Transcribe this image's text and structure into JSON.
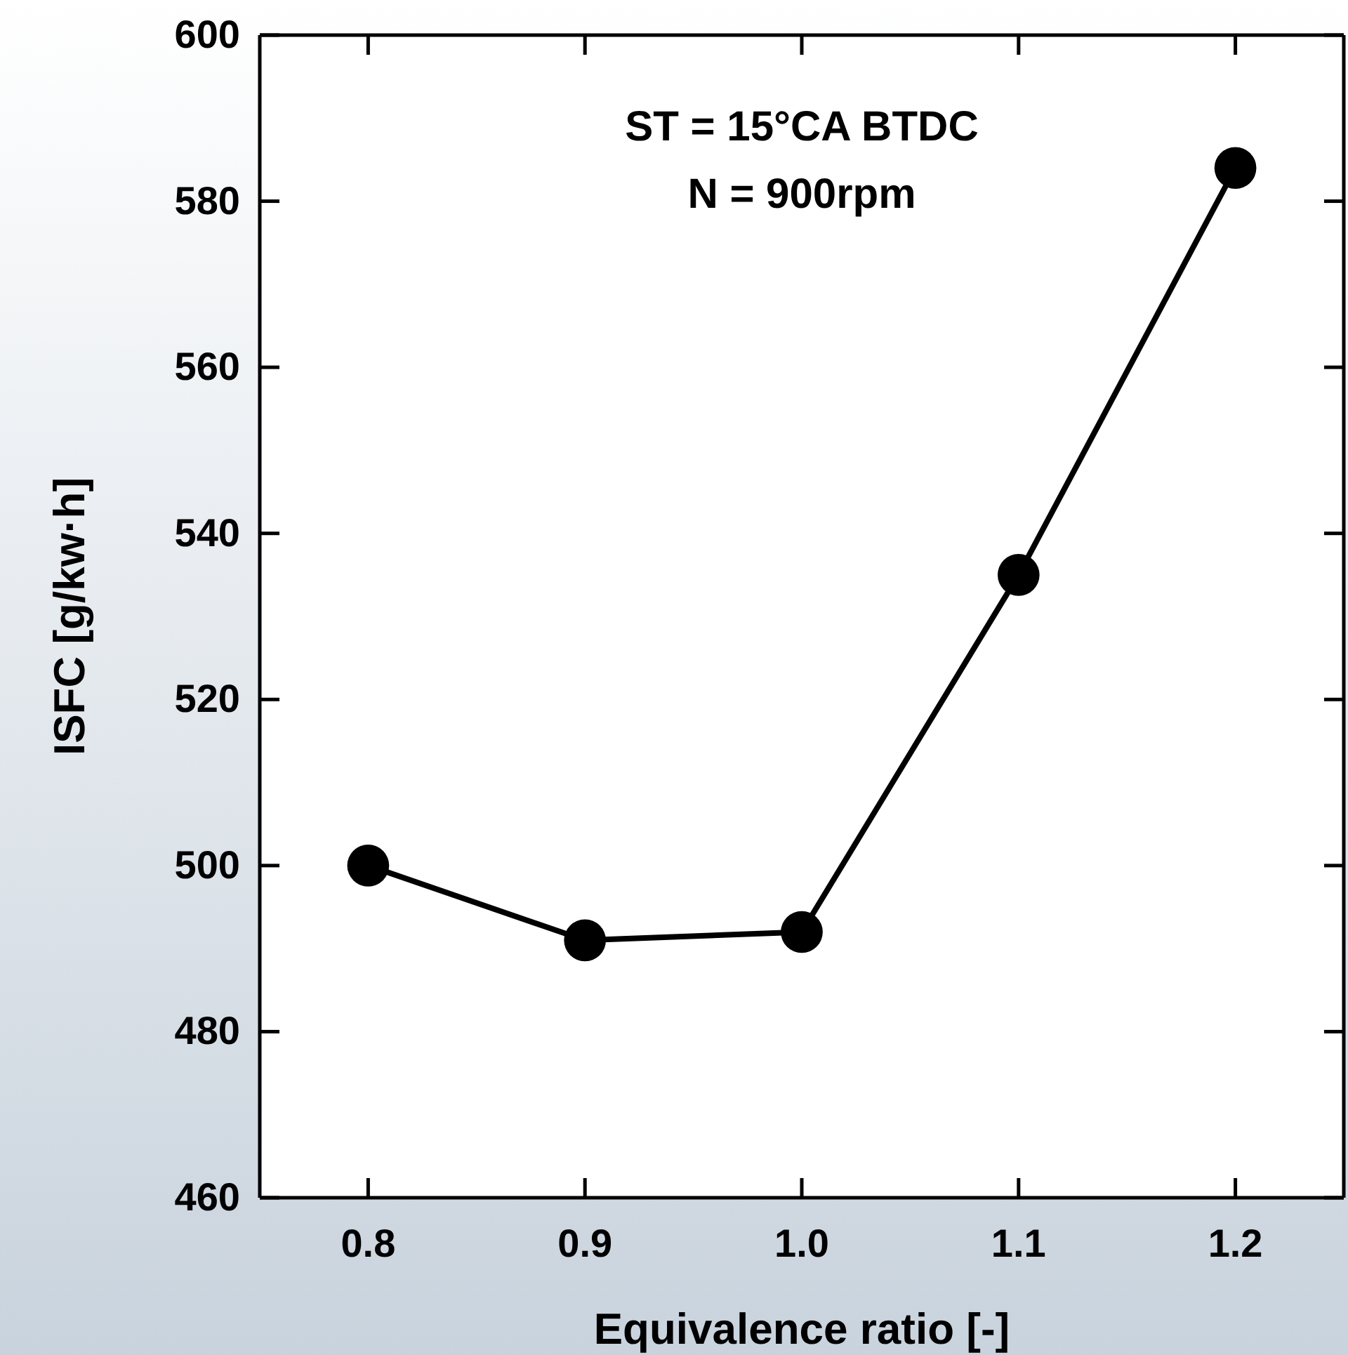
{
  "chart_data": {
    "type": "line",
    "xlabel": "Equivalence ratio [-]",
    "ylabel": "ISFC [g/kw·h]",
    "annotations": [
      "ST = 15°CA BTDC",
      "N = 900rpm"
    ],
    "x": [
      0.8,
      0.9,
      1.0,
      1.1,
      1.2
    ],
    "series": [
      {
        "color": "#000000",
        "values": [
          500,
          491,
          492,
          535,
          584
        ]
      }
    ],
    "xlim": [
      0.75,
      1.25
    ],
    "xticks": [
      0.8,
      0.9,
      {
        "value": 1.0,
        "label": "1.0"
      },
      1.1,
      1.2
    ],
    "ylim": [
      460,
      600
    ],
    "yticks": [
      460,
      480,
      500,
      520,
      540,
      560,
      580,
      600
    ],
    "grid": false,
    "marker": "circle",
    "line_style": "solid"
  }
}
